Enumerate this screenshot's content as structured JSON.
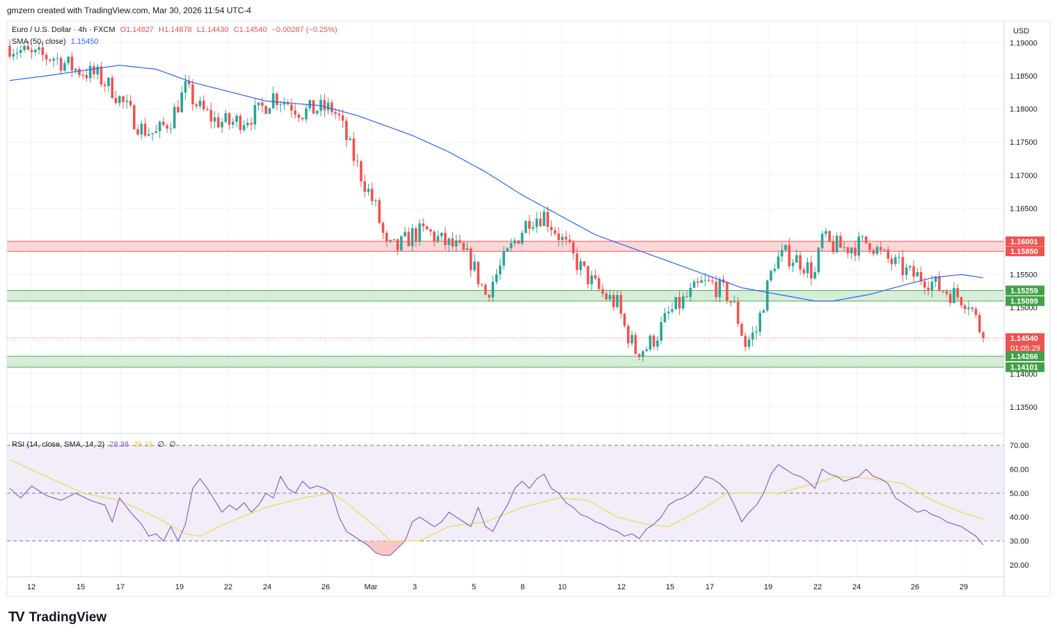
{
  "header": {
    "text": "gmzern created with TradingView.com, Mar 30, 2026 11:54 UTC-4"
  },
  "legend": {
    "symbol": "Euro / U.S. Dollar · 4h · FXCM",
    "open": "O1.14827",
    "high": "H1.14878",
    "low": "L1.14430",
    "close": "C1.14540",
    "change": "−0.00287 (−0.25%)",
    "sma": "SMA (50, close)",
    "sma_value": "1.15450"
  },
  "rsi_legend": {
    "title": "RSI (14, close, SMA, 14, 2)",
    "rsi": "28.38",
    "rsi_sma": "39.16",
    "extra1": "∅",
    "extra2": "∅"
  },
  "currency": "USD",
  "price_axis": [
    "1.19000",
    "1.18500",
    "1.18000",
    "1.17500",
    "1.17000",
    "1.16500",
    "1.16000",
    "1.15500",
    "1.15000",
    "1.14500",
    "1.14000",
    "1.13500"
  ],
  "rsi_axis": [
    "70.00",
    "60.00",
    "50.00",
    "40.00",
    "30.00",
    "20.00"
  ],
  "time_axis": [
    "12",
    "15",
    "17",
    "19",
    "22",
    "24",
    "26",
    "Mar",
    "3",
    "5",
    "8",
    "10",
    "12",
    "15",
    "17",
    "19",
    "22",
    "24",
    "26",
    "29"
  ],
  "level_labels": {
    "red_top": "1.16001",
    "red_bottom": "1.15850",
    "green1_top": "1.15259",
    "green1_bottom": "1.15099",
    "current": "1.14540",
    "countdown": "01:05:29",
    "green2_top": "1.14266",
    "green2_bottom": "1.14101"
  },
  "colors": {
    "up": "#26a69a",
    "down": "#ef5350",
    "sma": "#2962ff",
    "rsi": "#7e57c2",
    "rsi_sma": "#f0d94a",
    "red_zone": "#f7a7a7",
    "green_zone": "#a5d6a7"
  },
  "footer": {
    "brand": "TradingView"
  },
  "chart_data": {
    "type": "candlestick",
    "title": "Euro / U.S. Dollar · 4h · FXCM",
    "ylim": [
      1.131,
      1.1933
    ],
    "zones": [
      {
        "kind": "resistance",
        "top": 1.16001,
        "bottom": 1.1585
      },
      {
        "kind": "support",
        "top": 1.15259,
        "bottom": 1.15099
      },
      {
        "kind": "support",
        "top": 1.14266,
        "bottom": 1.14101
      }
    ],
    "last_price": 1.1454,
    "price_anchors": [
      [
        0,
        1.1895
      ],
      [
        6,
        1.188
      ],
      [
        12,
        1.1878
      ],
      [
        18,
        1.186
      ],
      [
        24,
        1.185
      ],
      [
        28,
        1.183
      ],
      [
        32,
        1.18
      ],
      [
        36,
        1.177
      ],
      [
        40,
        1.1762
      ],
      [
        44,
        1.1785
      ],
      [
        48,
        1.183
      ],
      [
        52,
        1.18
      ],
      [
        56,
        1.1783
      ],
      [
        60,
        1.1778
      ],
      [
        64,
        1.1785
      ],
      [
        68,
        1.1795
      ],
      [
        72,
        1.182
      ],
      [
        76,
        1.181
      ],
      [
        80,
        1.1795
      ],
      [
        84,
        1.18
      ],
      [
        88,
        1.18
      ],
      [
        90,
        1.1785
      ],
      [
        93,
        1.174
      ],
      [
        96,
        1.17
      ],
      [
        100,
        1.165
      ],
      [
        103,
        1.159
      ],
      [
        106,
        1.159
      ],
      [
        110,
        1.161
      ],
      [
        114,
        1.1615
      ],
      [
        118,
        1.16
      ],
      [
        122,
        1.159
      ],
      [
        126,
        1.157
      ],
      [
        130,
        1.152
      ],
      [
        134,
        1.156
      ],
      [
        138,
        1.16
      ],
      [
        142,
        1.1635
      ],
      [
        146,
        1.164
      ],
      [
        150,
        1.161
      ],
      [
        154,
        1.1575
      ],
      [
        158,
        1.1545
      ],
      [
        162,
        1.152
      ],
      [
        166,
        1.1505
      ],
      [
        168,
        1.147
      ],
      [
        171,
        1.1435
      ],
      [
        174,
        1.144
      ],
      [
        177,
        1.146
      ],
      [
        180,
        1.149
      ],
      [
        183,
        1.1505
      ],
      [
        186,
        1.152
      ],
      [
        189,
        1.1535
      ],
      [
        192,
        1.1535
      ],
      [
        196,
        1.152
      ],
      [
        198,
        1.15
      ],
      [
        201,
        1.1445
      ],
      [
        204,
        1.1465
      ],
      [
        206,
        1.151
      ],
      [
        209,
        1.157
      ],
      [
        212,
        1.158
      ],
      [
        216,
        1.157
      ],
      [
        220,
        1.155
      ],
      [
        222,
        1.1605
      ],
      [
        224,
        1.1595
      ],
      [
        228,
        1.159
      ],
      [
        232,
        1.1595
      ],
      [
        235,
        1.16
      ],
      [
        238,
        1.158
      ],
      [
        242,
        1.1565
      ],
      [
        246,
        1.155
      ],
      [
        250,
        1.1545
      ],
      [
        254,
        1.153
      ],
      [
        258,
        1.152
      ],
      [
        262,
        1.151
      ],
      [
        266,
        1.1455
      ]
    ],
    "sma50_anchors": [
      [
        0,
        1.1843
      ],
      [
        10,
        1.185
      ],
      [
        30,
        1.1866
      ],
      [
        40,
        1.186
      ],
      [
        50,
        1.184
      ],
      [
        70,
        1.1812
      ],
      [
        85,
        1.1805
      ],
      [
        95,
        1.179
      ],
      [
        110,
        1.176
      ],
      [
        120,
        1.1735
      ],
      [
        130,
        1.1705
      ],
      [
        140,
        1.167
      ],
      [
        150,
        1.164
      ],
      [
        160,
        1.161
      ],
      [
        170,
        1.159
      ],
      [
        180,
        1.157
      ],
      [
        190,
        1.155
      ],
      [
        200,
        1.153
      ],
      [
        210,
        1.152
      ],
      [
        220,
        1.151
      ],
      [
        225,
        1.151
      ],
      [
        235,
        1.152
      ],
      [
        245,
        1.1535
      ],
      [
        252,
        1.1545
      ],
      [
        260,
        1.155
      ],
      [
        266,
        1.1545
      ]
    ],
    "rsi_anchors": [
      [
        0,
        52
      ],
      [
        3,
        48
      ],
      [
        6,
        53
      ],
      [
        10,
        49
      ],
      [
        14,
        47
      ],
      [
        18,
        50
      ],
      [
        22,
        47
      ],
      [
        26,
        45
      ],
      [
        28,
        38
      ],
      [
        30,
        48
      ],
      [
        33,
        42
      ],
      [
        36,
        37
      ],
      [
        38,
        32
      ],
      [
        40,
        33
      ],
      [
        42,
        30
      ],
      [
        44,
        36
      ],
      [
        46,
        30
      ],
      [
        48,
        37
      ],
      [
        50,
        52
      ],
      [
        52,
        56
      ],
      [
        54,
        52
      ],
      [
        56,
        47
      ],
      [
        58,
        42
      ],
      [
        60,
        45
      ],
      [
        62,
        43
      ],
      [
        64,
        46
      ],
      [
        66,
        42
      ],
      [
        68,
        45
      ],
      [
        70,
        50
      ],
      [
        72,
        48
      ],
      [
        74,
        57
      ],
      [
        76,
        52
      ],
      [
        78,
        50
      ],
      [
        80,
        55
      ],
      [
        82,
        52
      ],
      [
        84,
        53
      ],
      [
        86,
        52
      ],
      [
        88,
        50
      ],
      [
        90,
        40
      ],
      [
        92,
        34
      ],
      [
        94,
        32
      ],
      [
        96,
        30
      ],
      [
        98,
        28
      ],
      [
        100,
        25
      ],
      [
        102,
        24
      ],
      [
        104,
        24
      ],
      [
        106,
        27
      ],
      [
        108,
        30
      ],
      [
        110,
        38
      ],
      [
        112,
        40
      ],
      [
        114,
        38
      ],
      [
        116,
        36
      ],
      [
        118,
        38
      ],
      [
        120,
        42
      ],
      [
        122,
        40
      ],
      [
        124,
        38
      ],
      [
        126,
        36
      ],
      [
        128,
        44
      ],
      [
        130,
        36
      ],
      [
        132,
        34
      ],
      [
        134,
        40
      ],
      [
        136,
        45
      ],
      [
        138,
        52
      ],
      [
        140,
        55
      ],
      [
        142,
        52
      ],
      [
        144,
        56
      ],
      [
        146,
        58
      ],
      [
        148,
        52
      ],
      [
        150,
        50
      ],
      [
        152,
        46
      ],
      [
        154,
        44
      ],
      [
        156,
        41
      ],
      [
        158,
        40
      ],
      [
        160,
        38
      ],
      [
        162,
        37
      ],
      [
        164,
        35
      ],
      [
        166,
        34
      ],
      [
        168,
        32
      ],
      [
        170,
        33
      ],
      [
        172,
        31
      ],
      [
        174,
        35
      ],
      [
        176,
        37
      ],
      [
        178,
        40
      ],
      [
        180,
        45
      ],
      [
        182,
        47
      ],
      [
        184,
        48
      ],
      [
        186,
        50
      ],
      [
        188,
        53
      ],
      [
        190,
        57
      ],
      [
        192,
        56
      ],
      [
        194,
        54
      ],
      [
        196,
        51
      ],
      [
        198,
        45
      ],
      [
        200,
        38
      ],
      [
        202,
        42
      ],
      [
        204,
        45
      ],
      [
        206,
        50
      ],
      [
        208,
        58
      ],
      [
        210,
        62
      ],
      [
        212,
        60
      ],
      [
        214,
        58
      ],
      [
        216,
        57
      ],
      [
        218,
        55
      ],
      [
        220,
        52
      ],
      [
        222,
        60
      ],
      [
        224,
        58
      ],
      [
        226,
        57
      ],
      [
        228,
        55
      ],
      [
        230,
        56
      ],
      [
        232,
        57
      ],
      [
        234,
        60
      ],
      [
        236,
        57
      ],
      [
        238,
        56
      ],
      [
        240,
        54
      ],
      [
        242,
        48
      ],
      [
        244,
        46
      ],
      [
        246,
        44
      ],
      [
        248,
        42
      ],
      [
        250,
        43
      ],
      [
        252,
        41
      ],
      [
        254,
        40
      ],
      [
        256,
        38
      ],
      [
        258,
        37
      ],
      [
        260,
        36
      ],
      [
        262,
        34
      ],
      [
        264,
        32
      ],
      [
        266,
        28.38
      ]
    ],
    "rsi_sma_anchors": [
      [
        0,
        64
      ],
      [
        10,
        57
      ],
      [
        20,
        50
      ],
      [
        30,
        47
      ],
      [
        40,
        40
      ],
      [
        48,
        33
      ],
      [
        52,
        32
      ],
      [
        60,
        38
      ],
      [
        70,
        44
      ],
      [
        80,
        48
      ],
      [
        88,
        50
      ],
      [
        92,
        46
      ],
      [
        100,
        36
      ],
      [
        104,
        30
      ],
      [
        112,
        30
      ],
      [
        120,
        36
      ],
      [
        130,
        38
      ],
      [
        140,
        44
      ],
      [
        150,
        48
      ],
      [
        158,
        47
      ],
      [
        166,
        40
      ],
      [
        174,
        37
      ],
      [
        180,
        36
      ],
      [
        190,
        44
      ],
      [
        196,
        50
      ],
      [
        202,
        50
      ],
      [
        210,
        50
      ],
      [
        220,
        54
      ],
      [
        226,
        57
      ],
      [
        236,
        56
      ],
      [
        244,
        54
      ],
      [
        252,
        47
      ],
      [
        260,
        42
      ],
      [
        266,
        39.16
      ]
    ],
    "rsi_ylim": [
      15,
      75
    ],
    "rsi_levels": [
      70,
      50,
      30
    ]
  }
}
